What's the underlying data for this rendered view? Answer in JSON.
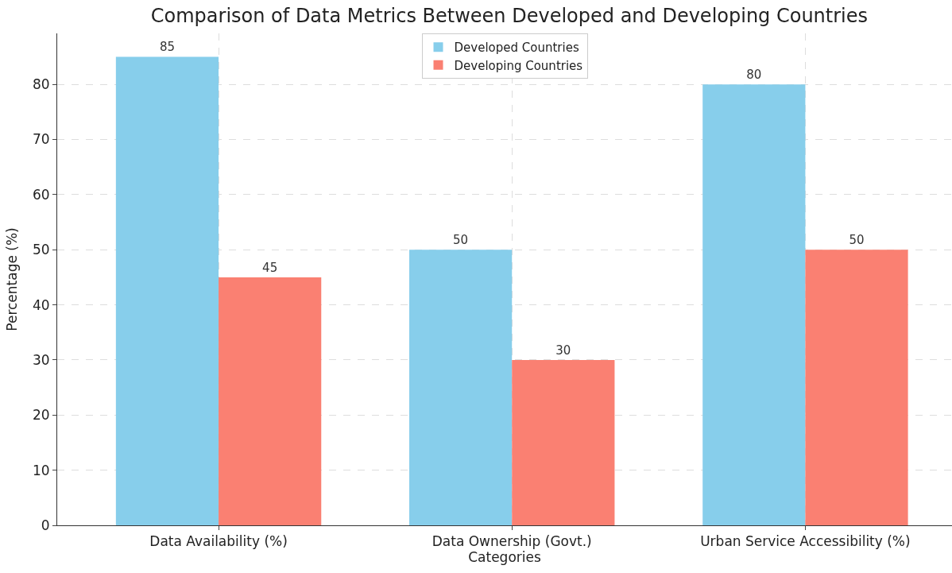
{
  "chart_data": {
    "type": "bar",
    "title": "Comparison of Data Metrics Between Developed and Developing Countries",
    "xlabel": "Categories",
    "ylabel": "Percentage (%)",
    "categories": [
      "Data Availability (%)",
      "Data Ownership (Govt.)",
      "Urban Service Accessibility (%)"
    ],
    "series": [
      {
        "name": "Developed Countries",
        "color": "#87ceeb",
        "values": [
          85,
          50,
          80
        ]
      },
      {
        "name": "Developing Countries",
        "color": "#fa8072",
        "values": [
          45,
          30,
          50
        ]
      }
    ],
    "ylim": [
      0,
      89.25
    ],
    "yticks": [
      0,
      10,
      20,
      30,
      40,
      50,
      60,
      70,
      80
    ],
    "grid": true,
    "legend": "top",
    "data_labels": true
  }
}
